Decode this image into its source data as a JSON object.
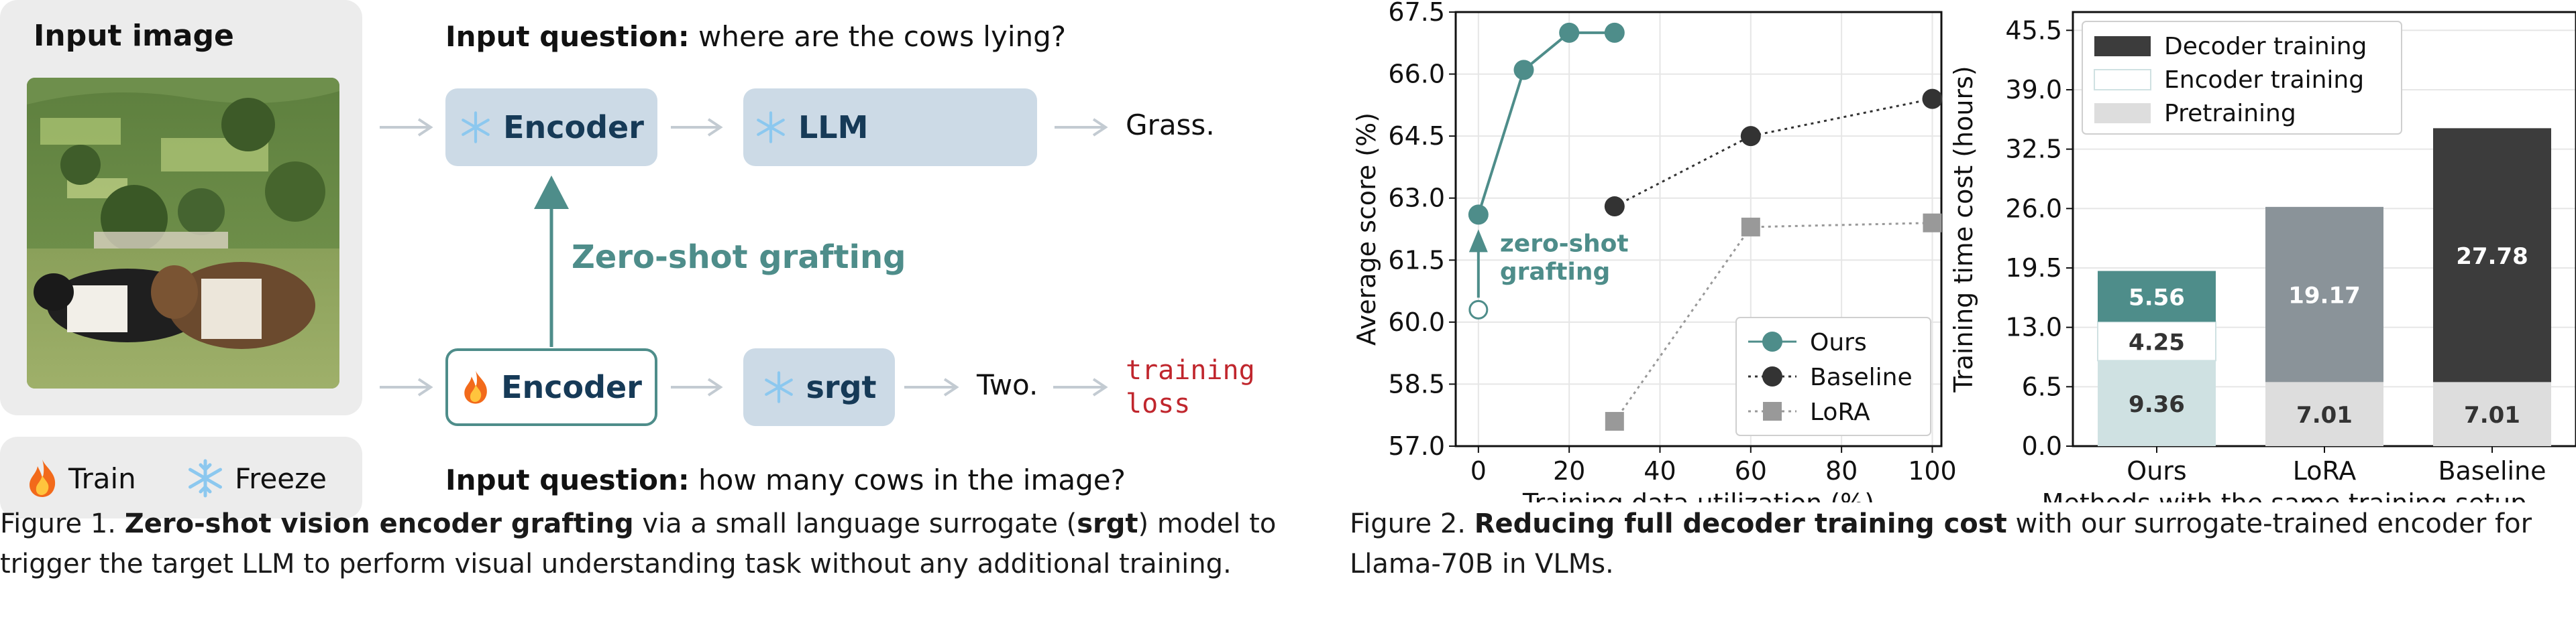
{
  "figure1": {
    "input_image_title": "Input image",
    "question_top_prefix": "Input question:",
    "question_top": "where are the cows lying?",
    "question_bottom_prefix": "Input question:",
    "question_bottom": "how many cows in the image?",
    "encoder_label": "Encoder",
    "llm_label": "LLM",
    "srgt_label": "srgt",
    "answer_top": "Grass.",
    "answer_bottom": "Two.",
    "loss_line1": "training",
    "loss_line2": "loss",
    "graft_label": "Zero-shot grafting",
    "legend_train": "Train",
    "legend_freeze": "Freeze",
    "icons": {
      "train": "fire-icon",
      "freeze": "snowflake-icon"
    },
    "colors": {
      "teal": "#4e8d8a",
      "box_fill": "#ccdae6",
      "loss_red": "#c0262d"
    },
    "caption": {
      "prefix": "Figure 1.",
      "bold1": "Zero-shot vision encoder grafting",
      "text1": "via a small language surrogate (",
      "bold2": "srgt",
      "text2": ") model to trigger the target LLM to perform visual understanding task without any additional training."
    }
  },
  "figure2": {
    "caption": {
      "prefix": "Figure 2.",
      "bold": "Reducing full decoder training cost",
      "text": "with our surrogate-trained encoder for Llama-70B in VLMs."
    }
  },
  "chart_data": [
    {
      "type": "line",
      "xlabel": "Training data utilization (%)",
      "ylabel": "Average score (%)",
      "xlim": [
        -5,
        102
      ],
      "ylim": [
        57.0,
        67.5
      ],
      "xticks": [
        "0",
        "20",
        "40",
        "60",
        "80",
        "100"
      ],
      "yticks": [
        "57.0",
        "58.5",
        "60.0",
        "61.5",
        "63.0",
        "64.5",
        "66.0",
        "67.5"
      ],
      "grid": true,
      "legend_position": "bottom-right",
      "series": [
        {
          "name": "Ours",
          "color": "#4e8d8a",
          "marker": "circle",
          "dash": "solid",
          "x": [
            0,
            10,
            20,
            30
          ],
          "y": [
            62.6,
            66.1,
            67.0,
            67.0
          ]
        },
        {
          "name": "Baseline",
          "color": "#333333",
          "marker": "circle",
          "dash": "dotted",
          "x": [
            30,
            60,
            100
          ],
          "y": [
            62.8,
            64.5,
            65.4
          ]
        },
        {
          "name": "LoRA",
          "color": "#999999",
          "marker": "square",
          "dash": "dotted",
          "x": [
            30,
            60,
            100
          ],
          "y": [
            57.6,
            62.3,
            62.4
          ]
        }
      ],
      "annotation": {
        "text_line1": "zero-shot",
        "text_line2": "grafting",
        "from_y": 60.3,
        "to_y": 62.6,
        "x": 0
      }
    },
    {
      "type": "bar",
      "stacked": true,
      "xlabel": "Methods with the same training setup",
      "ylabel": "Training time cost (hours)",
      "ylim": [
        0,
        47.5
      ],
      "yticks": [
        "0.0",
        "6.5",
        "13.0",
        "19.5",
        "26.0",
        "32.5",
        "39.0",
        "45.5"
      ],
      "categories": [
        "Ours",
        "LoRA",
        "Baseline"
      ],
      "grid": true,
      "legend_position": "top-left",
      "legend": [
        "Decoder training",
        "Encoder training",
        "Pretraining"
      ],
      "bars": [
        {
          "category": "Ours",
          "segments": [
            {
              "name": "Pretraining",
              "value": 9.36,
              "label": "9.36",
              "color": "#cfe1e2",
              "text_color": "#333333"
            },
            {
              "name": "Encoder training",
              "value": 4.25,
              "label": "4.25",
              "color": "#ffffff",
              "text_color": "#333333"
            },
            {
              "name": "Decoder training",
              "value": 5.56,
              "label": "5.56",
              "color": "#4e8d8a",
              "text_color": "#ffffff"
            }
          ]
        },
        {
          "category": "LoRA",
          "segments": [
            {
              "name": "Pretraining",
              "value": 7.01,
              "label": "7.01",
              "color": "#dddddd",
              "text_color": "#333333"
            },
            {
              "name": "Decoder training",
              "value": 19.17,
              "label": "19.17",
              "color": "#8a9399",
              "text_color": "#ffffff"
            }
          ]
        },
        {
          "category": "Baseline",
          "segments": [
            {
              "name": "Pretraining",
              "value": 7.01,
              "label": "7.01",
              "color": "#dddddd",
              "text_color": "#333333"
            },
            {
              "name": "Decoder training",
              "value": 27.78,
              "label": "27.78",
              "color": "#3c3c3c",
              "text_color": "#ffffff"
            }
          ]
        }
      ],
      "legend_colors": [
        "#3c3c3c",
        "#ffffff",
        "#dddddd"
      ]
    }
  ]
}
